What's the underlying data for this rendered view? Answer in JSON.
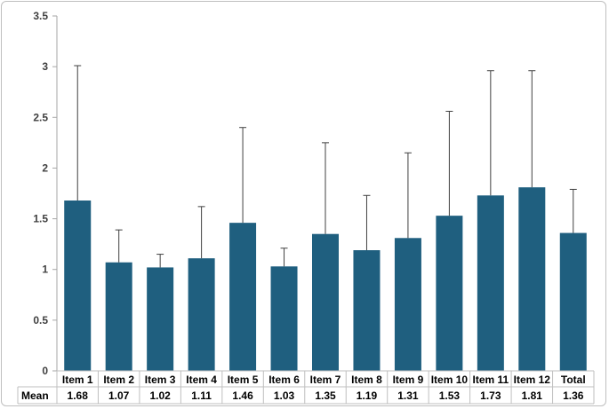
{
  "chart_data": {
    "type": "bar",
    "title": "",
    "xlabel": "",
    "ylabel": "",
    "categories": [
      "Item 1",
      "Item 2",
      "Item 3",
      "Item 4",
      "Item 5",
      "Item 6",
      "Item 7",
      "Item 8",
      "Item 9",
      "Item 10",
      "Item 11",
      "Item 12",
      "Total"
    ],
    "series": [
      {
        "values": [
          1.68,
          1.07,
          1.02,
          1.11,
          1.46,
          1.03,
          1.35,
          1.19,
          1.31,
          1.53,
          1.73,
          1.81,
          1.36
        ],
        "error_upper": [
          3.01,
          1.39,
          1.15,
          1.62,
          2.4,
          1.21,
          2.25,
          1.73,
          2.15,
          2.56,
          2.96,
          2.96,
          1.79
        ],
        "color": "#1f5f7f"
      }
    ],
    "ylim": [
      0,
      3.5
    ],
    "yticks": [
      "0",
      "0.5",
      "1",
      "1.5",
      "2",
      "2.5",
      "3",
      "3.5"
    ],
    "grid": false,
    "legend": "none",
    "data_table": {
      "row_label": "Mean",
      "values": [
        "1.68",
        "1.07",
        "1.02",
        "1.11",
        "1.46",
        "1.03",
        "1.35",
        "1.19",
        "1.31",
        "1.53",
        "1.73",
        "1.81",
        "1.36"
      ]
    }
  }
}
